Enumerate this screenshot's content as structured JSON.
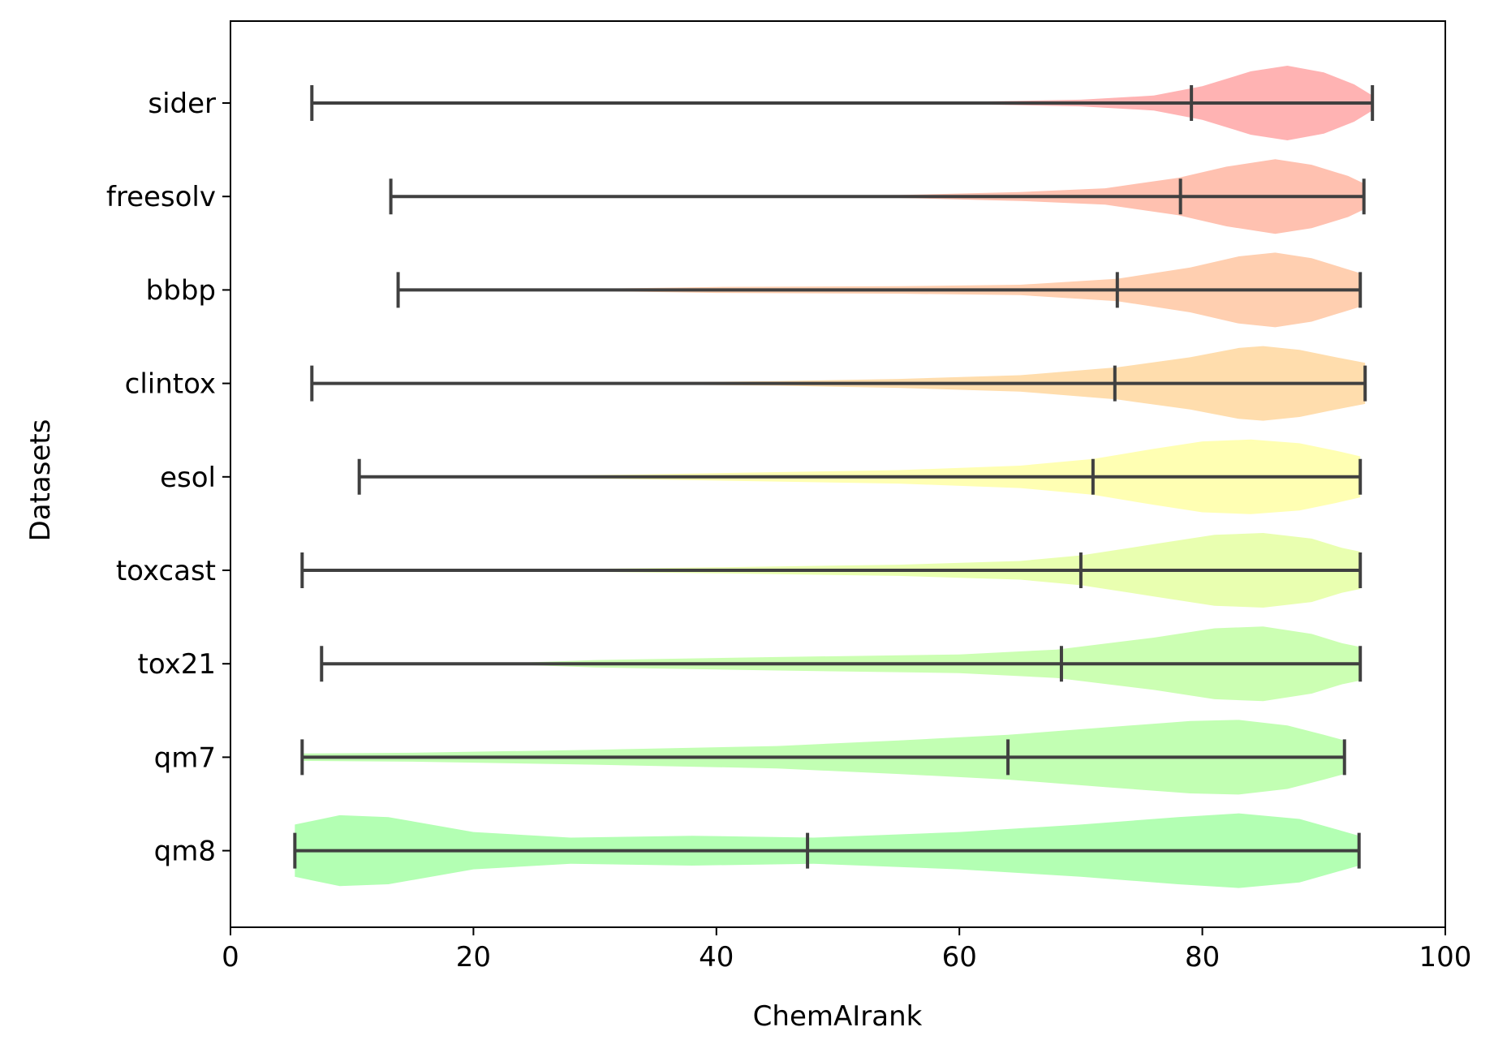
{
  "chart_data": {
    "type": "violin",
    "orientation": "horizontal",
    "xlabel": "ChemAIrank",
    "ylabel": "Datasets",
    "xlim": [
      0,
      100
    ],
    "xticks": [
      0,
      20,
      40,
      60,
      80,
      100
    ],
    "grid": false,
    "series": [
      {
        "name": "sider",
        "color": "#FFB3B3",
        "min": 6.7,
        "median": 79.1,
        "max": 94.0,
        "density": [
          [
            6.7,
            0.0
          ],
          [
            30,
            0.003
          ],
          [
            50,
            0.01
          ],
          [
            60,
            0.03
          ],
          [
            70,
            0.09
          ],
          [
            76,
            0.2
          ],
          [
            80,
            0.45
          ],
          [
            84,
            0.85
          ],
          [
            87,
            1.0
          ],
          [
            90,
            0.82
          ],
          [
            92.5,
            0.5
          ],
          [
            94.0,
            0.2
          ]
        ]
      },
      {
        "name": "freesolv",
        "color": "#FFC1B0",
        "min": 13.2,
        "median": 78.2,
        "max": 93.3,
        "density": [
          [
            13.2,
            0.0
          ],
          [
            35,
            0.008
          ],
          [
            55,
            0.04
          ],
          [
            65,
            0.12
          ],
          [
            72,
            0.22
          ],
          [
            78,
            0.5
          ],
          [
            82,
            0.8
          ],
          [
            86,
            1.0
          ],
          [
            89,
            0.85
          ],
          [
            92,
            0.55
          ],
          [
            93.3,
            0.35
          ]
        ]
      },
      {
        "name": "bbbp",
        "color": "#FFCFB0",
        "min": 13.8,
        "median": 73.0,
        "max": 93.0,
        "density": [
          [
            13.8,
            0.0
          ],
          [
            30,
            0.03
          ],
          [
            40,
            0.08
          ],
          [
            55,
            0.1
          ],
          [
            65,
            0.14
          ],
          [
            73,
            0.3
          ],
          [
            79,
            0.6
          ],
          [
            83,
            0.9
          ],
          [
            86,
            1.0
          ],
          [
            89,
            0.85
          ],
          [
            92,
            0.55
          ],
          [
            93.0,
            0.45
          ]
        ]
      },
      {
        "name": "clintox",
        "color": "#FFDDAD",
        "min": 6.7,
        "median": 72.8,
        "max": 93.4,
        "density": [
          [
            6.7,
            0.0
          ],
          [
            30,
            0.01
          ],
          [
            45,
            0.06
          ],
          [
            55,
            0.12
          ],
          [
            65,
            0.22
          ],
          [
            73,
            0.43
          ],
          [
            79,
            0.7
          ],
          [
            83,
            0.95
          ],
          [
            85,
            1.0
          ],
          [
            88,
            0.9
          ],
          [
            91,
            0.7
          ],
          [
            93.4,
            0.55
          ]
        ]
      },
      {
        "name": "esol",
        "color": "#FFFFB3",
        "min": 10.6,
        "median": 71.0,
        "max": 93.0,
        "density": [
          [
            10.6,
            0.0
          ],
          [
            25,
            0.02
          ],
          [
            40,
            0.1
          ],
          [
            55,
            0.18
          ],
          [
            65,
            0.3
          ],
          [
            71,
            0.48
          ],
          [
            76,
            0.75
          ],
          [
            80,
            0.95
          ],
          [
            84,
            1.0
          ],
          [
            88,
            0.9
          ],
          [
            91,
            0.7
          ],
          [
            93.0,
            0.55
          ]
        ]
      },
      {
        "name": "toxcast",
        "color": "#E9FFB0",
        "min": 5.9,
        "median": 70.0,
        "max": 93.0,
        "density": [
          [
            5.9,
            0.0
          ],
          [
            25,
            0.02
          ],
          [
            40,
            0.08
          ],
          [
            55,
            0.15
          ],
          [
            65,
            0.25
          ],
          [
            70,
            0.4
          ],
          [
            76,
            0.7
          ],
          [
            81,
            0.95
          ],
          [
            85,
            1.0
          ],
          [
            89,
            0.85
          ],
          [
            91.5,
            0.6
          ],
          [
            93.0,
            0.5
          ]
        ]
      },
      {
        "name": "tox21",
        "color": "#CCFFB3",
        "min": 7.5,
        "median": 68.4,
        "max": 93.0,
        "density": [
          [
            7.5,
            0.0
          ],
          [
            24,
            0.03
          ],
          [
            30,
            0.1
          ],
          [
            45,
            0.18
          ],
          [
            60,
            0.25
          ],
          [
            68,
            0.38
          ],
          [
            76,
            0.7
          ],
          [
            81,
            0.95
          ],
          [
            85,
            1.0
          ],
          [
            89,
            0.8
          ],
          [
            91.5,
            0.55
          ],
          [
            93.0,
            0.45
          ]
        ]
      },
      {
        "name": "qm7",
        "color": "#C2FFB3",
        "min": 5.9,
        "median": 64.0,
        "max": 91.7,
        "density": [
          [
            5.9,
            0.1
          ],
          [
            15,
            0.12
          ],
          [
            30,
            0.2
          ],
          [
            45,
            0.3
          ],
          [
            55,
            0.45
          ],
          [
            64,
            0.6
          ],
          [
            72,
            0.8
          ],
          [
            79,
            0.97
          ],
          [
            83,
            1.0
          ],
          [
            87,
            0.85
          ],
          [
            90,
            0.6
          ],
          [
            91.7,
            0.45
          ]
        ]
      },
      {
        "name": "qm8",
        "color": "#B3FFB3",
        "min": 5.3,
        "median": 47.5,
        "max": 92.9,
        "density": [
          [
            5.3,
            0.7
          ],
          [
            9,
            0.95
          ],
          [
            13,
            0.9
          ],
          [
            20,
            0.5
          ],
          [
            28,
            0.35
          ],
          [
            38,
            0.4
          ],
          [
            48,
            0.35
          ],
          [
            60,
            0.5
          ],
          [
            70,
            0.7
          ],
          [
            78,
            0.9
          ],
          [
            83,
            1.0
          ],
          [
            88,
            0.85
          ],
          [
            92.9,
            0.4
          ]
        ]
      }
    ]
  }
}
